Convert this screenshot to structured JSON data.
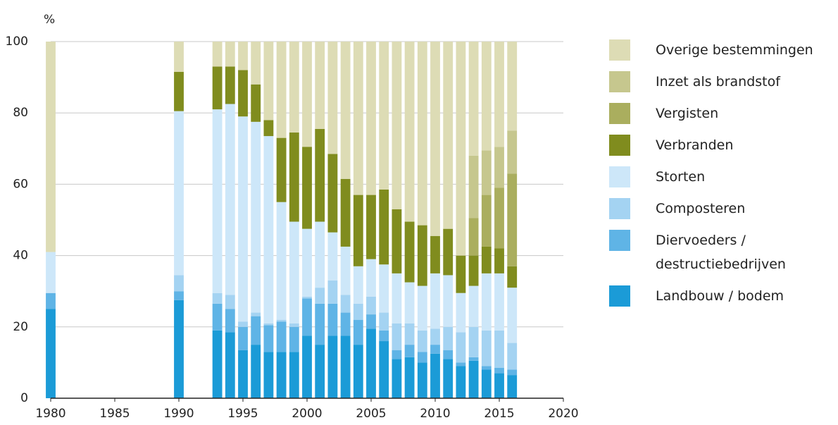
{
  "chart_data": {
    "type": "stacked-bar",
    "y_label": "%",
    "x": [
      1980,
      1990,
      1993,
      1994,
      1995,
      1996,
      1997,
      1998,
      1999,
      2000,
      2001,
      2002,
      2003,
      2004,
      2005,
      2006,
      2007,
      2008,
      2009,
      2010,
      2011,
      2012,
      2013,
      2014,
      2015,
      2016
    ],
    "xlim": [
      1980,
      2020
    ],
    "xticks": [
      1980,
      1985,
      1990,
      1995,
      2000,
      2005,
      2010,
      2015,
      2020
    ],
    "ylim": [
      0,
      100
    ],
    "yticks": [
      0,
      20,
      40,
      60,
      80,
      100
    ],
    "grid": true,
    "series": [
      {
        "name": "Landbouw / bodem",
        "color": "#1b9bd7",
        "values": [
          25,
          27.5,
          19,
          18.5,
          13.5,
          15,
          13,
          13,
          13,
          17.5,
          15,
          17.5,
          17.5,
          15,
          19.5,
          16,
          11,
          11.5,
          10,
          12.5,
          11,
          9,
          10.5,
          8,
          7,
          6.5
        ]
      },
      {
        "name": "Diervoeders / destructiebedrijven",
        "color": "#5fb4e6",
        "values": [
          4.5,
          2.5,
          7.5,
          6.5,
          6.5,
          8,
          7.5,
          8.5,
          7,
          10.5,
          11.5,
          9,
          6.5,
          7,
          4,
          3,
          2.5,
          3.5,
          3,
          2.5,
          2.5,
          1,
          1,
          1,
          1.5,
          1.5
        ]
      },
      {
        "name": "Composteren",
        "color": "#a4d3f2",
        "values": [
          0,
          4.5,
          3,
          4,
          1.5,
          1,
          0.5,
          0.5,
          1,
          0.5,
          4.5,
          6.5,
          5,
          4.5,
          5,
          5,
          7.5,
          6,
          6,
          4.5,
          6.5,
          8.5,
          8.5,
          10,
          10.5,
          7.5
        ]
      },
      {
        "name": "Storten",
        "color": "#cde7f9",
        "values": [
          11.5,
          46,
          51.5,
          53.5,
          57.5,
          53.5,
          52.5,
          33,
          28.5,
          19,
          18.5,
          13.5,
          13.5,
          10.5,
          10.5,
          13.5,
          14,
          11.5,
          12.5,
          15.5,
          14.5,
          11,
          11.5,
          16,
          16,
          15.5
        ]
      },
      {
        "name": "Verbranden",
        "color": "#808c1e",
        "values": [
          0,
          11,
          12,
          10.5,
          13,
          10.5,
          4.5,
          18,
          25,
          23,
          26,
          22,
          19,
          20,
          18,
          21,
          18,
          17,
          17,
          10.5,
          13,
          10.5,
          8.5,
          7.5,
          7,
          6
        ]
      },
      {
        "name": "Vergisten",
        "color": "#aaae5e",
        "values": [
          0,
          0,
          0,
          0,
          0,
          0,
          0,
          0,
          0,
          0,
          0,
          0,
          0,
          0,
          0,
          0,
          0,
          0,
          0,
          0,
          0,
          0,
          10.5,
          14.5,
          17,
          26
        ]
      },
      {
        "name": "Inzet als brandstof",
        "color": "#c6c78e",
        "values": [
          0,
          0,
          0,
          0,
          0,
          0,
          0,
          0,
          0,
          0,
          0,
          0,
          0,
          0,
          0,
          0,
          0,
          0,
          0,
          0,
          0,
          0,
          17.5,
          12.5,
          11.5,
          12
        ]
      },
      {
        "name": "Overige bestemmingen",
        "color": "#dddcb5",
        "values": [
          59,
          8.5,
          7,
          7,
          8,
          12,
          22,
          27,
          25.5,
          29.5,
          24.5,
          31.5,
          38.5,
          43,
          43,
          41.5,
          47,
          50.5,
          51.5,
          54.5,
          52.5,
          60,
          32,
          30.5,
          29.5,
          25
        ]
      }
    ]
  }
}
